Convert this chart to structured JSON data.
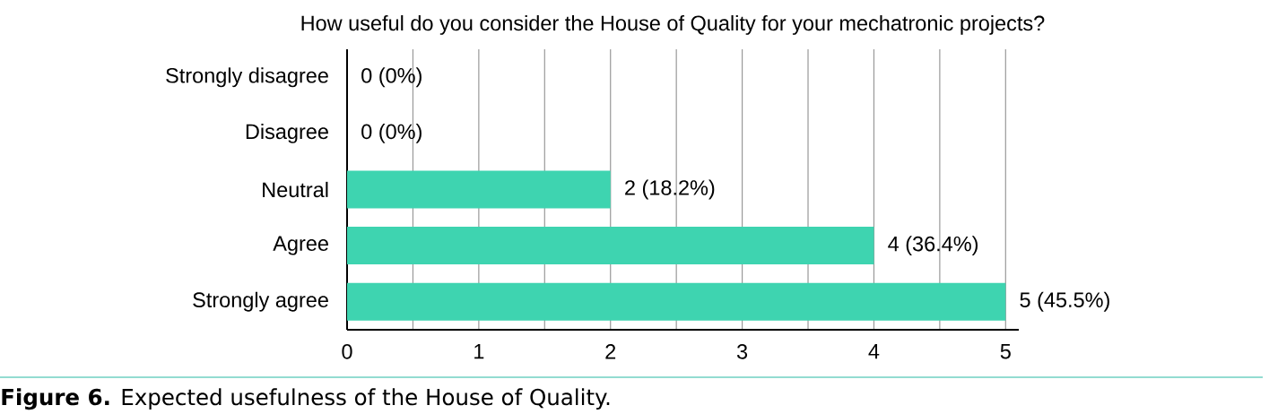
{
  "chart_data": {
    "type": "bar",
    "orientation": "horizontal",
    "title": "How useful do you consider the House of Quality for your mechatronic projects?",
    "categories": [
      "Strongly disagree",
      "Disagree",
      "Neutral",
      "Agree",
      "Strongly agree"
    ],
    "values": [
      0,
      0,
      2,
      4,
      5
    ],
    "value_labels": [
      "0 (0%)",
      "0 (0%)",
      "2 (18.2%)",
      "4 (36.4%)",
      "5 (45.5%)"
    ],
    "color": "#3ed4b0",
    "xlim": [
      0,
      5.1
    ],
    "xticks": [
      0,
      {
        "value": 0.5,
        "label": null
      },
      1,
      {
        "value": 1.5,
        "label": null
      },
      2,
      {
        "value": 2.5,
        "label": null
      },
      3,
      {
        "value": 3.5,
        "label": null
      },
      4,
      {
        "value": 4.5,
        "label": null
      },
      5
    ],
    "grid": "x",
    "annotations": [
      "**Figure 6.** Expected usefulness of the House of Quality."
    ]
  }
}
